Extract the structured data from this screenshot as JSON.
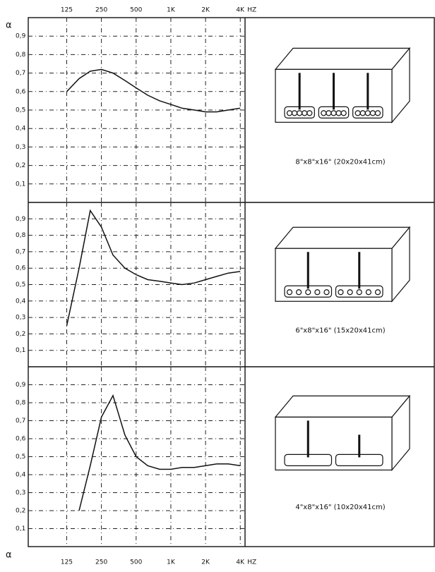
{
  "chart_data": [
    {
      "type": "line",
      "ylabel": "α",
      "caption": "8\"x8\"x16\" (20x20x41cm)",
      "x": [
        125,
        160,
        200,
        250,
        315,
        400,
        500,
        630,
        800,
        1000,
        1250,
        1600,
        2000,
        2500,
        3150,
        4000
      ],
      "values": [
        0.6,
        0.67,
        0.71,
        0.72,
        0.7,
        0.66,
        0.62,
        0.58,
        0.55,
        0.53,
        0.51,
        0.5,
        0.49,
        0.49,
        0.5,
        0.51
      ],
      "xlim": [
        58,
        4400
      ],
      "log_x": true,
      "ylim": [
        0,
        1
      ],
      "xticks": [
        125,
        250,
        500,
        {
          "value": 1000,
          "label": "1K"
        },
        {
          "value": 2000,
          "label": "2K"
        },
        {
          "value": 4000,
          "label": "4K"
        }
      ],
      "x_unit": "HZ",
      "yticks": [
        {
          "value": 0.1,
          "label": "0,1"
        },
        {
          "value": 0.2,
          "label": "0,2"
        },
        {
          "value": 0.3,
          "label": "0,3"
        },
        {
          "value": 0.4,
          "label": "0,4"
        },
        {
          "value": 0.5,
          "label": "0,5"
        },
        {
          "value": 0.6,
          "label": "0,6"
        },
        {
          "value": 0.7,
          "label": "0,7"
        },
        {
          "value": 0.8,
          "label": "0,8"
        },
        {
          "value": 0.9,
          "label": "0,9"
        }
      ],
      "grid": true
    },
    {
      "type": "line",
      "caption": "6\"x8\"x16\" (15x20x41cm)",
      "x": [
        125,
        160,
        200,
        250,
        315,
        400,
        500,
        630,
        800,
        1000,
        1250,
        1600,
        2000,
        2500,
        3150,
        4000
      ],
      "values": [
        0.25,
        0.6,
        0.95,
        0.85,
        0.68,
        0.6,
        0.56,
        0.53,
        0.52,
        0.51,
        0.5,
        0.51,
        0.53,
        0.55,
        0.57,
        0.58
      ],
      "xlim": [
        58,
        4400
      ],
      "log_x": true,
      "ylim": [
        0,
        1
      ],
      "yticks": [
        {
          "value": 0.1,
          "label": "0,1"
        },
        {
          "value": 0.2,
          "label": "0,2"
        },
        {
          "value": 0.3,
          "label": "0,3"
        },
        {
          "value": 0.4,
          "label": "0,4"
        },
        {
          "value": 0.5,
          "label": "0,5"
        },
        {
          "value": 0.6,
          "label": "0,6"
        },
        {
          "value": 0.7,
          "label": "0,7"
        },
        {
          "value": 0.8,
          "label": "0,8"
        },
        {
          "value": 0.9,
          "label": "0,9"
        }
      ],
      "grid": true
    },
    {
      "type": "line",
      "ylabel": "α",
      "caption": "4\"x8\"x16\" (10x20x41cm)",
      "x": [
        160,
        200,
        250,
        315,
        400,
        500,
        630,
        800,
        1000,
        1250,
        1600,
        2000,
        2500,
        3150,
        4000
      ],
      "values": [
        0.2,
        0.45,
        0.72,
        0.84,
        0.62,
        0.5,
        0.45,
        0.43,
        0.43,
        0.44,
        0.44,
        0.45,
        0.46,
        0.46,
        0.45
      ],
      "xlim": [
        58,
        4400
      ],
      "log_x": true,
      "ylim": [
        0,
        1
      ],
      "xticks": [
        125,
        250,
        500,
        {
          "value": 1000,
          "label": "1K"
        },
        {
          "value": 2000,
          "label": "2K"
        },
        {
          "value": 4000,
          "label": "4K"
        }
      ],
      "x_unit": "HZ",
      "yticks": [
        {
          "value": 0.1,
          "label": "0,1"
        },
        {
          "value": 0.2,
          "label": "0,2"
        },
        {
          "value": 0.3,
          "label": "0,3"
        },
        {
          "value": 0.4,
          "label": "0,4"
        },
        {
          "value": 0.5,
          "label": "0,5"
        },
        {
          "value": 0.6,
          "label": "0,6"
        },
        {
          "value": 0.7,
          "label": "0,7"
        },
        {
          "value": 0.8,
          "label": "0,8"
        },
        {
          "value": 0.9,
          "label": "0,9"
        }
      ],
      "grid": true
    }
  ]
}
